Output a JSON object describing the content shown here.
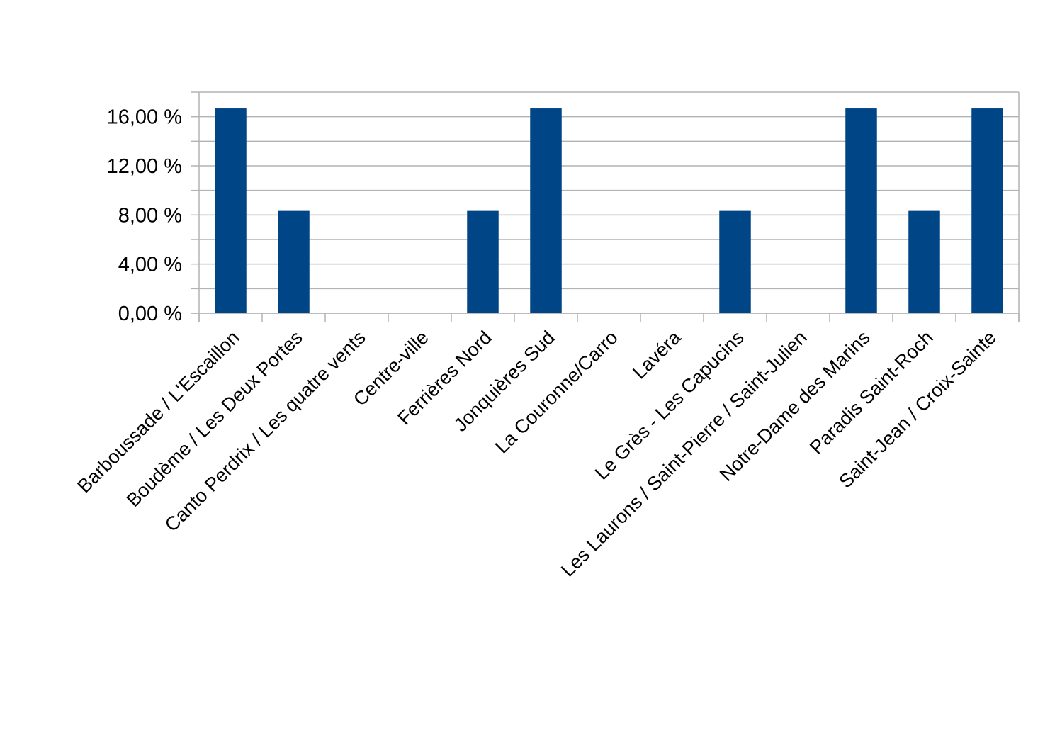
{
  "chart_data": {
    "type": "bar",
    "title": "",
    "xlabel": "",
    "ylabel": "",
    "categories": [
      "Barboussade / L'Escaillon",
      "Boudème / Les Deux Portes",
      "Canto Perdrix / Les quatre vents",
      "Centre-ville",
      "Ferrières Nord",
      "Jonquières Sud",
      "La Couronne/Carro",
      "Lavéra",
      "Le Grès - Les Capucins",
      "Les Laurons / Saint-Pierre / Saint-Julien",
      "Notre-Dame des Marins",
      "Paradis Saint-Roch",
      "Saint-Jean / Croix-Sainte"
    ],
    "values": [
      16.67,
      8.33,
      0,
      0,
      8.33,
      16.67,
      0,
      0,
      8.33,
      0,
      16.67,
      8.33,
      16.67
    ],
    "ylim": [
      0,
      18
    ],
    "yticks": [
      {
        "value": 0,
        "label": "0,00 %"
      },
      {
        "value": 4,
        "label": "4,00 %"
      },
      {
        "value": 8,
        "label": "8,00 %"
      },
      {
        "value": 12,
        "label": "12,00 %"
      },
      {
        "value": 16,
        "label": "16,00 %"
      }
    ],
    "minor_gridlines": [
      2,
      6,
      10,
      14,
      18
    ],
    "grid": true,
    "legend": "none",
    "colors": {
      "bar": "#004586",
      "grid": "#b3b3b3",
      "axis": "#b3b3b3"
    }
  }
}
